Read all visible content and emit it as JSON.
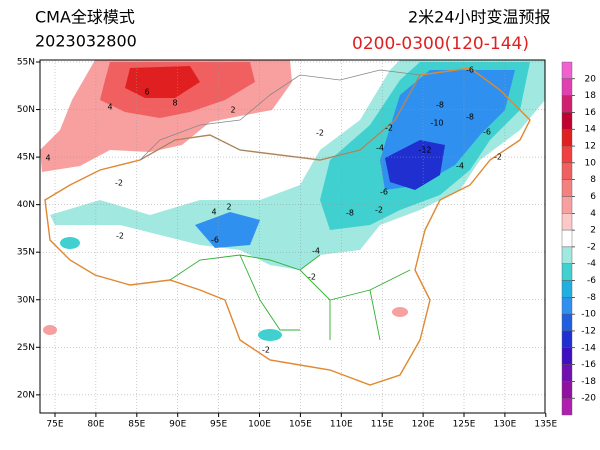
{
  "header": {
    "model": "CMA全球模式",
    "init": "2023032800",
    "product": "2米24小时变温预报",
    "period": "0200-0300(120-144)"
  },
  "map": {
    "lon_labels": [
      "75E",
      "80E",
      "85E",
      "90E",
      "95E",
      "100E",
      "105E",
      "110E",
      "115E",
      "120E",
      "125E",
      "130E",
      "135E"
    ],
    "lat_labels": [
      "55N",
      "50N",
      "45N",
      "40N",
      "35N",
      "30N",
      "25N",
      "20N"
    ],
    "contour_labels": [
      -6,
      -8,
      -10,
      -8,
      -6,
      -12,
      -4,
      -4,
      -2,
      -6,
      -2,
      -8,
      -2,
      -2,
      -6,
      -2,
      -2,
      -2,
      -4,
      6,
      8,
      4,
      2,
      4,
      -2,
      2,
      4
    ]
  },
  "colorbar": {
    "levels": [
      20,
      18,
      16,
      14,
      12,
      10,
      8,
      6,
      4,
      2,
      -2,
      -4,
      -6,
      -8,
      -10,
      -12,
      -14,
      -16,
      -18,
      -20
    ],
    "colors": [
      "#f060d0",
      "#e040b0",
      "#d02070",
      "#c00030",
      "#e02020",
      "#f04040",
      "#f06060",
      "#f48080",
      "#f8a0a0",
      "#fcc8c8",
      "#ffffff",
      "#a0e8e0",
      "#40d0d0",
      "#20b0e0",
      "#3090f0",
      "#2060e0",
      "#2030d0",
      "#4010c0",
      "#7010b0",
      "#9010a0",
      "#b020b0"
    ]
  }
}
